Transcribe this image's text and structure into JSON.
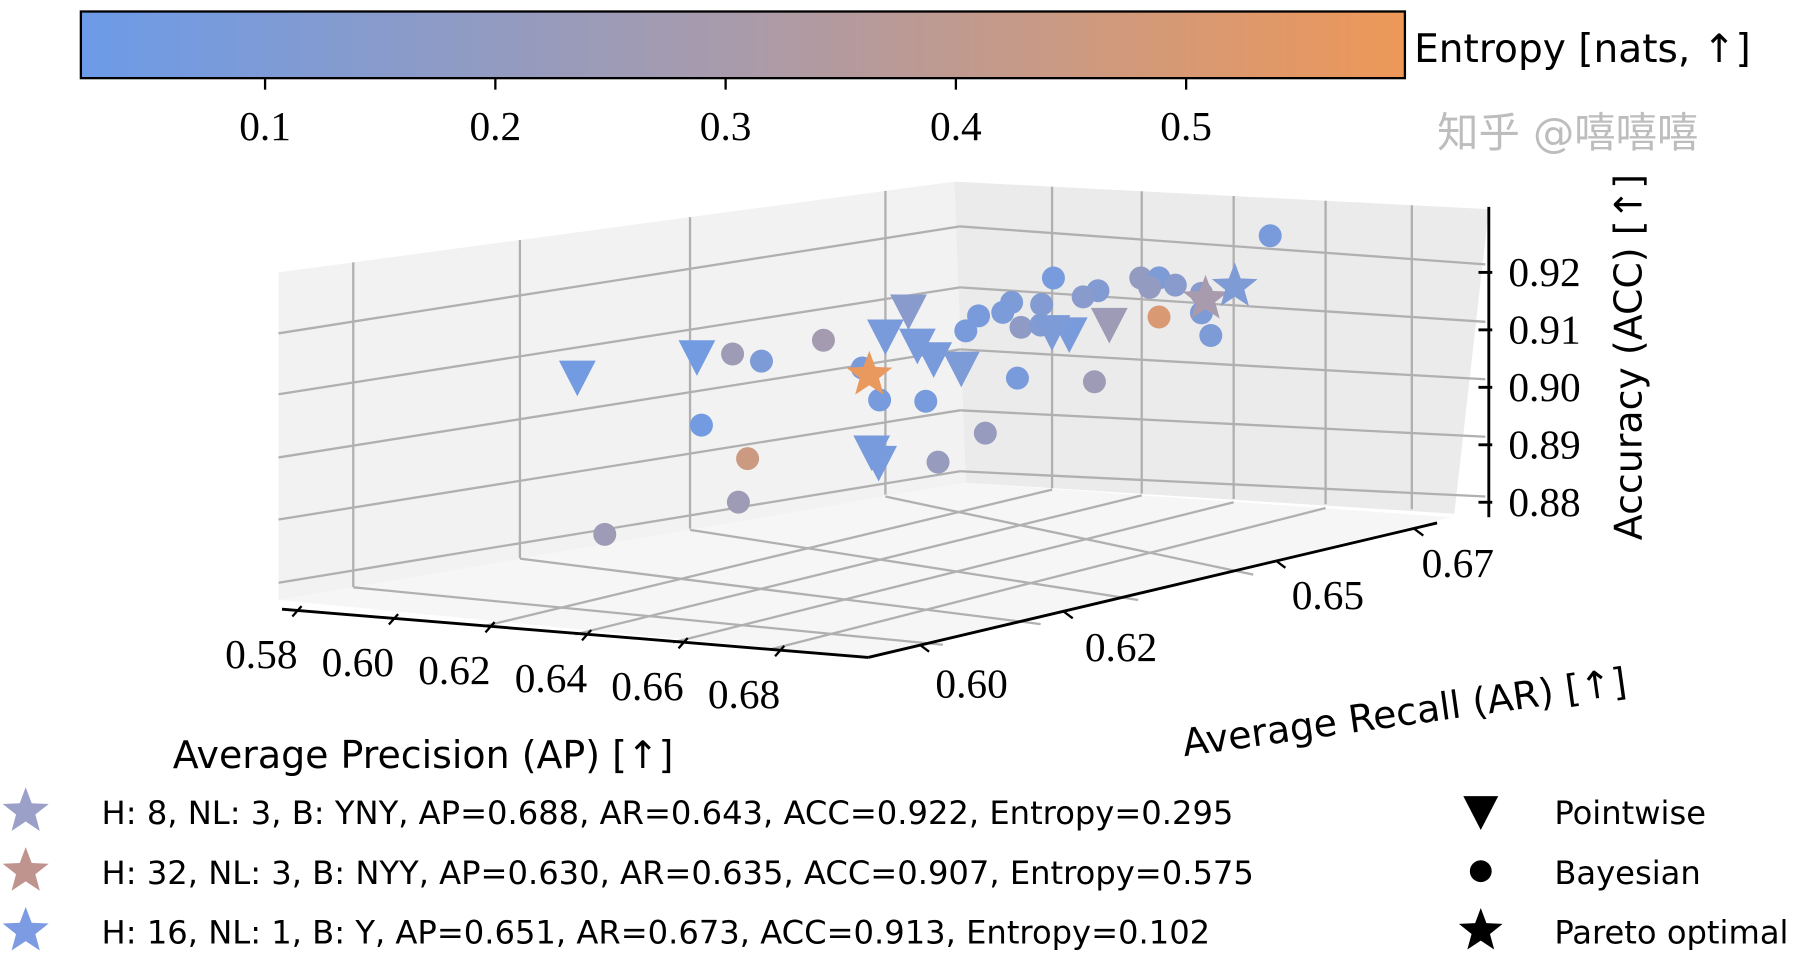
{
  "chart_data": {
    "type": "scatter3d",
    "xlabel": "Average Precision (AP) [↑]",
    "ylabel": "Average Recall (AR) [↑]",
    "zlabel": "Accuracy (ACC) [↑]",
    "colorbar_label": "Entropy [nats, ↑]",
    "colorbar_ticks": [
      "0.1",
      "0.2",
      "0.3",
      "0.4",
      "0.5"
    ],
    "colorbar_range": [
      0.02,
      0.595
    ],
    "colormap": [
      "#6c9be8",
      "#aa9baa",
      "#ee9858"
    ],
    "x_ticks": [
      "0.58",
      "0.60",
      "0.62",
      "0.64",
      "0.66",
      "0.68"
    ],
    "y_ticks": [
      "0.60",
      "0.62",
      "0.65",
      "0.67"
    ],
    "z_ticks": [
      "0.92",
      "0.91",
      "0.90",
      "0.89",
      "0.88"
    ],
    "xlim": [
      0.576,
      0.697
    ],
    "ylim": [
      0.593,
      0.675
    ],
    "zlim": [
      0.8775,
      0.93
    ],
    "grid": true,
    "points": [
      {
        "ap": 0.6655,
        "ar": 0.668,
        "acc": 0.9243,
        "entropy": 0.08,
        "marker": "circle"
      },
      {
        "ap": 0.6537,
        "ar": 0.645,
        "acc": 0.9227,
        "entropy": 0.07,
        "marker": "circle"
      },
      {
        "ap": 0.6574,
        "ar": 0.655,
        "acc": 0.9201,
        "entropy": 0.2,
        "marker": "circle"
      },
      {
        "ap": 0.6583,
        "ar": 0.657,
        "acc": 0.9196,
        "entropy": 0.1,
        "marker": "circle"
      },
      {
        "ap": 0.6588,
        "ar": 0.659,
        "acc": 0.9178,
        "entropy": 0.15,
        "marker": "circle"
      },
      {
        "ap": 0.6543,
        "ar": 0.651,
        "acc": 0.9188,
        "entropy": 0.12,
        "marker": "circle"
      },
      {
        "ap": 0.6541,
        "ar": 0.649,
        "acc": 0.9183,
        "entropy": 0.15,
        "marker": "circle"
      },
      {
        "ap": 0.6508,
        "ar": 0.641,
        "acc": 0.9194,
        "entropy": 0.1,
        "marker": "circle"
      },
      {
        "ap": 0.6527,
        "ar": 0.644,
        "acc": 0.9183,
        "entropy": 0.12,
        "marker": "circle"
      },
      {
        "ap": 0.6504,
        "ar": 0.64,
        "acc": 0.9179,
        "entropy": 0.09,
        "marker": "circle"
      },
      {
        "ap": 0.6497,
        "ar": 0.637,
        "acc": 0.9181,
        "entropy": 0.08,
        "marker": "circle"
      },
      {
        "ap": 0.6485,
        "ar": 0.636,
        "acc": 0.9157,
        "entropy": 0.08,
        "marker": "circle"
      },
      {
        "ap": 0.6513,
        "ar": 0.642,
        "acc": 0.9148,
        "entropy": 0.18,
        "marker": "circle"
      },
      {
        "ap": 0.6525,
        "ar": 0.644,
        "acc": 0.9147,
        "entropy": 0.12,
        "marker": "circle"
      },
      {
        "ap": 0.6599,
        "ar": 0.662,
        "acc": 0.9122,
        "entropy": 0.1,
        "marker": "circle"
      },
      {
        "ap": 0.6604,
        "ar": 0.663,
        "acc": 0.908,
        "entropy": 0.1,
        "marker": "circle"
      },
      {
        "ap": 0.6583,
        "ar": 0.657,
        "acc": 0.9128,
        "entropy": 0.5,
        "marker": "circle"
      },
      {
        "ap": 0.6333,
        "ar": 0.613,
        "acc": 0.9172,
        "entropy": 0.25,
        "marker": "circle"
      },
      {
        "ap": 0.6364,
        "ar": 0.615,
        "acc": 0.9156,
        "entropy": 0.1,
        "marker": "circle"
      },
      {
        "ap": 0.6406,
        "ar": 0.621,
        "acc": 0.9178,
        "entropy": 0.28,
        "marker": "circle"
      },
      {
        "ap": 0.6429,
        "ar": 0.625,
        "acc": 0.912,
        "entropy": 0.08,
        "marker": "circle"
      },
      {
        "ap": 0.652,
        "ar": 0.641,
        "acc": 0.9063,
        "entropy": 0.08,
        "marker": "circle"
      },
      {
        "ap": 0.655,
        "ar": 0.65,
        "acc": 0.9033,
        "entropy": 0.25,
        "marker": "circle"
      },
      {
        "ap": 0.6436,
        "ar": 0.627,
        "acc": 0.9059,
        "entropy": 0.07,
        "marker": "circle"
      },
      {
        "ap": 0.6474,
        "ar": 0.631,
        "acc": 0.9048,
        "entropy": 0.07,
        "marker": "circle"
      },
      {
        "ap": 0.6326,
        "ar": 0.609,
        "acc": 0.9059,
        "entropy": 0.05,
        "marker": "circle"
      },
      {
        "ap": 0.6511,
        "ar": 0.637,
        "acc": 0.8978,
        "entropy": 0.22,
        "marker": "circle"
      },
      {
        "ap": 0.6364,
        "ar": 0.613,
        "acc": 0.8992,
        "entropy": 0.45,
        "marker": "circle"
      },
      {
        "ap": 0.6485,
        "ar": 0.632,
        "acc": 0.894,
        "entropy": 0.22,
        "marker": "circle"
      },
      {
        "ap": 0.6345,
        "ar": 0.613,
        "acc": 0.8915,
        "entropy": 0.25,
        "marker": "circle"
      },
      {
        "ap": 0.6241,
        "ar": 0.601,
        "acc": 0.8886,
        "entropy": 0.25,
        "marker": "circle"
      },
      {
        "ap": 0.6599,
        "ar": 0.662,
        "acc": 0.9156,
        "entropy": 0.15,
        "marker": "circle"
      },
      {
        "ap": 0.6578,
        "ar": 0.656,
        "acc": 0.9182,
        "entropy": 0.2,
        "marker": "circle"
      },
      {
        "ap": 0.6213,
        "ar": 0.599,
        "acc": 0.9164,
        "entropy": 0.05,
        "marker": "triangle"
      },
      {
        "ap": 0.6331,
        "ar": 0.608,
        "acc": 0.9182,
        "entropy": 0.05,
        "marker": "triangle"
      },
      {
        "ap": 0.6467,
        "ar": 0.629,
        "acc": 0.9211,
        "entropy": 0.15,
        "marker": "triangle"
      },
      {
        "ap": 0.6448,
        "ar": 0.627,
        "acc": 0.9172,
        "entropy": 0.08,
        "marker": "triangle"
      },
      {
        "ap": 0.6471,
        "ar": 0.63,
        "acc": 0.9149,
        "entropy": 0.08,
        "marker": "triangle"
      },
      {
        "ap": 0.6476,
        "ar": 0.632,
        "acc": 0.912,
        "entropy": 0.08,
        "marker": "triangle"
      },
      {
        "ap": 0.649,
        "ar": 0.635,
        "acc": 0.9096,
        "entropy": 0.1,
        "marker": "triangle"
      },
      {
        "ap": 0.6541,
        "ar": 0.647,
        "acc": 0.9125,
        "entropy": 0.08,
        "marker": "triangle"
      },
      {
        "ap": 0.6534,
        "ar": 0.645,
        "acc": 0.9134,
        "entropy": 0.1,
        "marker": "triangle"
      },
      {
        "ap": 0.6552,
        "ar": 0.652,
        "acc": 0.9128,
        "entropy": 0.25,
        "marker": "triangle"
      },
      {
        "ap": 0.6434,
        "ar": 0.626,
        "acc": 0.8972,
        "entropy": 0.07,
        "marker": "triangle"
      },
      {
        "ap": 0.6434,
        "ar": 0.627,
        "acc": 0.8951,
        "entropy": 0.07,
        "marker": "triangle"
      },
      {
        "ap": 0.688,
        "ar": 0.643,
        "acc": 0.922,
        "entropy": 0.295,
        "marker": "star"
      },
      {
        "ap": 0.63,
        "ar": 0.635,
        "acc": 0.907,
        "entropy": 0.575,
        "marker": "star"
      },
      {
        "ap": 0.651,
        "ar": 0.673,
        "acc": 0.913,
        "entropy": 0.102,
        "marker": "star"
      }
    ],
    "pareto_legend": [
      {
        "label": "H: 8, NL: 3, B: YNY, AP=0.688, AR=0.643, ACC=0.922, Entropy=0.295",
        "color": "#9aa0c8"
      },
      {
        "label": "H: 32, NL: 3, B: NYY, AP=0.630, AR=0.635, ACC=0.907, Entropy=0.575",
        "color": "#c0948e"
      },
      {
        "label": "H: 16, NL: 1, B: Y, AP=0.651, AR=0.673, ACC=0.913, Entropy=0.102",
        "color": "#7c9be2"
      }
    ],
    "marker_legend": [
      {
        "label": "Pointwise",
        "marker": "triangle"
      },
      {
        "label": "Bayesian",
        "marker": "circle"
      },
      {
        "label": "Pareto optimal",
        "marker": "star"
      }
    ]
  },
  "watermark": "知乎 @嘻嘻嘻"
}
